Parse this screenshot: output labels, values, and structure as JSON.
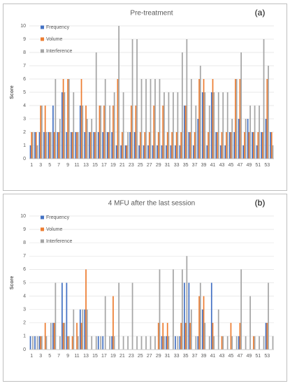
{
  "chart_data": [
    {
      "type": "bar",
      "title": "Pre-treatment",
      "panel_label": "(a)",
      "y_label": "Score",
      "categories": [
        1,
        null,
        3,
        null,
        5,
        null,
        7,
        null,
        9,
        null,
        11,
        null,
        13,
        null,
        15,
        null,
        17,
        null,
        19,
        null,
        21,
        null,
        23,
        null,
        25,
        null,
        27,
        null,
        29,
        null,
        31,
        null,
        33,
        null,
        35,
        null,
        37,
        null,
        39,
        null,
        41,
        null,
        43,
        null,
        45,
        null,
        47,
        null,
        49,
        null,
        51,
        null,
        53,
        null
      ],
      "series": [
        {
          "name": "Frequency",
          "color": "#4472c4",
          "values": [
            1,
            2,
            2,
            2,
            2,
            4,
            2,
            5,
            2,
            2,
            2,
            4,
            2,
            2,
            2,
            2,
            2,
            2,
            2,
            1,
            1,
            1,
            2,
            2,
            1,
            1,
            1,
            1,
            1,
            1,
            1,
            1,
            1,
            1,
            4,
            2,
            1,
            3,
            5,
            1,
            5,
            2,
            1,
            1,
            2,
            2,
            3,
            1,
            3,
            2,
            1,
            2,
            3,
            2
          ]
        },
        {
          "name": "Volume",
          "color": "#ed7d31",
          "values": [
            2,
            2,
            4,
            4,
            2,
            2,
            2,
            6,
            6,
            2,
            2,
            6,
            4,
            2,
            2,
            4,
            4,
            2,
            4,
            6,
            2,
            1,
            4,
            4,
            2,
            2,
            2,
            4,
            2,
            4,
            2,
            2,
            2,
            2,
            4,
            2,
            2,
            6,
            6,
            2,
            6,
            2,
            2,
            2,
            2,
            6,
            6,
            2,
            2,
            2,
            2,
            2,
            6,
            2
          ]
        },
        {
          "name": "Interference",
          "color": "#a5a5a5",
          "values": [
            2,
            1,
            4,
            2,
            2,
            6,
            3,
            5,
            6,
            5,
            2,
            4,
            3,
            3,
            8,
            4,
            6,
            4,
            5,
            10,
            5,
            2,
            9,
            9,
            6,
            6,
            6,
            6,
            6,
            5,
            5,
            5,
            5,
            8,
            9,
            6,
            4,
            7,
            5,
            4,
            5,
            5,
            5,
            5,
            3,
            6,
            8,
            3,
            4,
            4,
            4,
            9,
            7,
            1
          ]
        }
      ],
      "ylim": [
        0,
        10
      ],
      "yticks": [
        0,
        1,
        2,
        3,
        4,
        5,
        6,
        7,
        8,
        9,
        10
      ],
      "grid": true,
      "legend": "top-left"
    },
    {
      "type": "bar",
      "title": "4 MFU after the last session",
      "panel_label": "(b)",
      "y_label": "Score",
      "categories": [
        1,
        null,
        3,
        null,
        5,
        null,
        7,
        null,
        9,
        null,
        11,
        null,
        13,
        null,
        15,
        null,
        17,
        null,
        19,
        null,
        21,
        null,
        23,
        null,
        25,
        null,
        27,
        null,
        29,
        null,
        31,
        null,
        33,
        null,
        35,
        null,
        37,
        null,
        39,
        null,
        41,
        null,
        43,
        null,
        45,
        null,
        47,
        null,
        49,
        null,
        51,
        null,
        53,
        null
      ],
      "series": [
        {
          "name": "Frequency",
          "color": "#4472c4",
          "values": [
            1,
            1,
            1,
            0,
            0,
            2,
            0,
            5,
            5,
            0,
            0,
            3,
            3,
            0,
            0,
            1,
            1,
            0,
            1,
            0,
            0,
            0,
            0,
            0,
            0,
            0,
            0,
            0,
            0,
            1,
            1,
            0,
            1,
            1,
            5,
            5,
            0,
            1,
            3,
            0,
            5,
            0,
            0,
            0,
            0,
            0,
            1,
            0,
            0,
            0,
            0,
            0,
            2,
            0
          ]
        },
        {
          "name": "Volume",
          "color": "#ed7d31",
          "values": [
            0,
            0,
            1,
            2,
            0,
            2,
            0,
            2,
            1,
            1,
            2,
            2,
            6,
            0,
            0,
            0,
            0,
            0,
            4,
            0,
            0,
            0,
            0,
            0,
            0,
            0,
            0,
            0,
            2,
            2,
            2,
            0,
            0,
            2,
            2,
            2,
            0,
            4,
            4,
            0,
            2,
            0,
            1,
            0,
            2,
            0,
            2,
            0,
            0,
            1,
            0,
            0,
            2,
            0
          ]
        },
        {
          "name": "Interference",
          "color": "#a5a5a5",
          "values": [
            1,
            1,
            1,
            1,
            2,
            5,
            1,
            2,
            1,
            3,
            1,
            3,
            3,
            1,
            1,
            1,
            4,
            1,
            1,
            5,
            1,
            1,
            5,
            1,
            1,
            1,
            1,
            1,
            6,
            1,
            1,
            6,
            1,
            6,
            7,
            3,
            1,
            5,
            2,
            1,
            1,
            3,
            1,
            1,
            1,
            1,
            6,
            1,
            4,
            1,
            1,
            1,
            5,
            1
          ]
        }
      ],
      "ylim": [
        0,
        10
      ],
      "yticks": [
        0,
        1,
        2,
        3,
        4,
        5,
        6,
        7,
        8,
        9,
        10
      ],
      "grid": true,
      "legend": "top-left"
    }
  ]
}
